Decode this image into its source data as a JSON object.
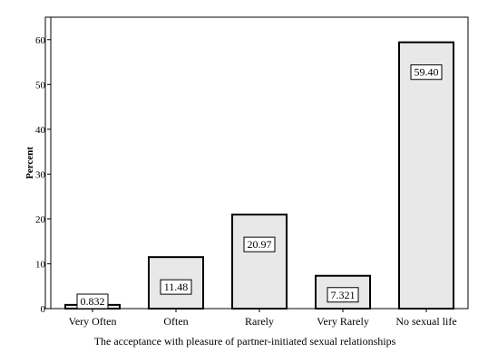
{
  "chart_data": {
    "type": "bar",
    "categories": [
      "Very Often",
      "Often",
      "Rarely",
      "Very Rarely",
      "No sexual life"
    ],
    "values": [
      0.832,
      11.48,
      20.97,
      7.321,
      59.4
    ],
    "data_labels": [
      "0.832",
      "11.48",
      "20.97",
      "7.321",
      "59.40"
    ],
    "xlabel": "The acceptance with pleasure of partner-initiated sexual relationships",
    "ylabel": "Percent",
    "ylim": [
      0,
      65
    ],
    "yticks": [
      0,
      10,
      20,
      30,
      40,
      50,
      60
    ],
    "grid": false,
    "bar_color": "#e8e8e8"
  }
}
